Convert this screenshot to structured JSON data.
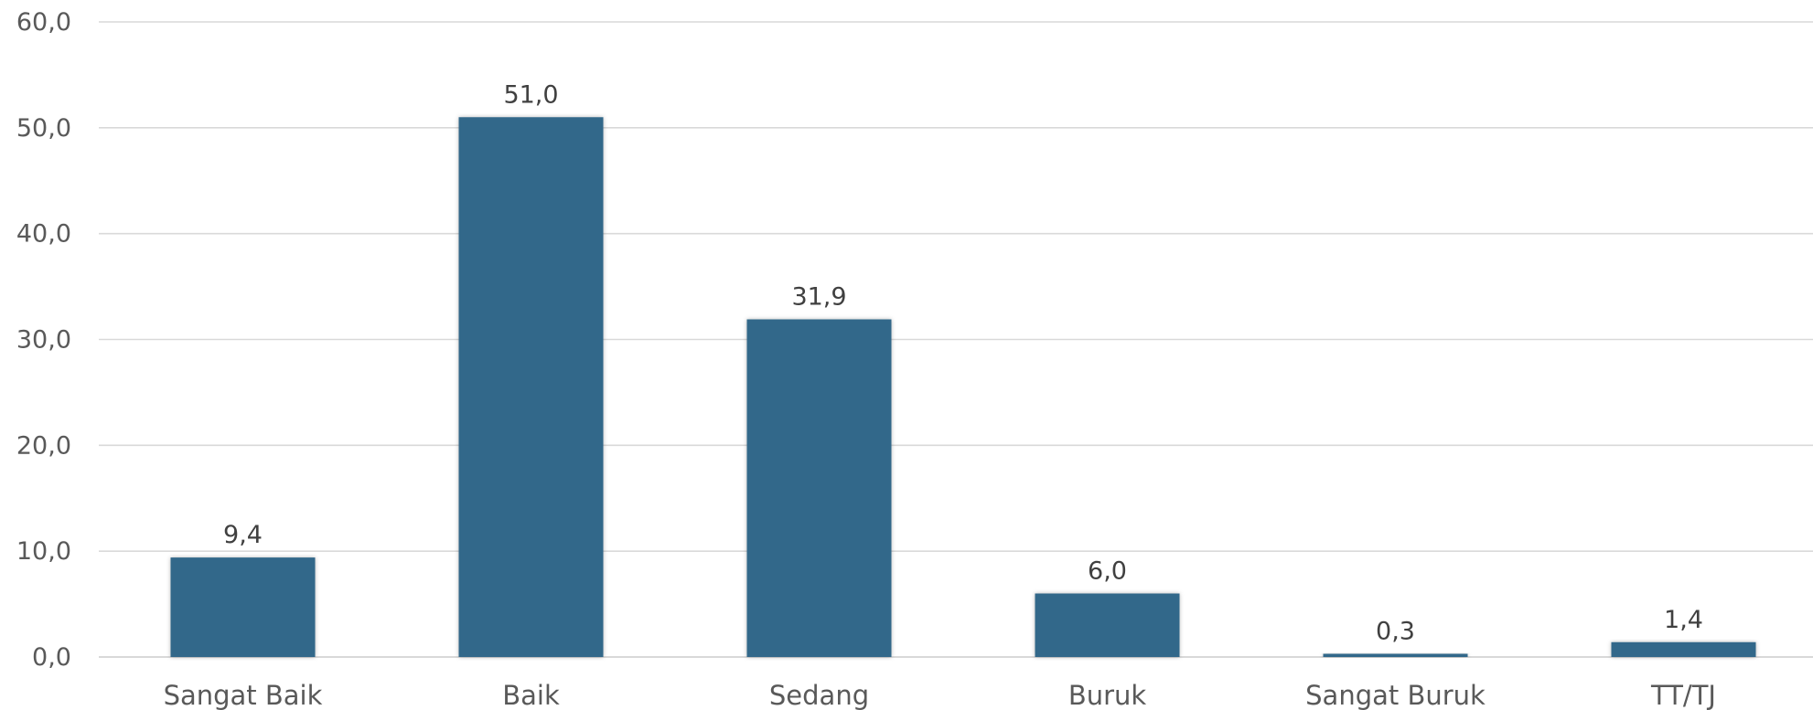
{
  "chart_data": {
    "type": "bar",
    "title": "",
    "xlabel": "",
    "ylabel": "",
    "categories": [
      "Sangat Baik",
      "Baik",
      "Sedang",
      "Buruk",
      "Sangat Buruk",
      "TT/TJ"
    ],
    "values": [
      9.4,
      51.0,
      31.9,
      6.0,
      0.3,
      1.4
    ],
    "value_labels": [
      "9,4",
      "51,0",
      "31,9",
      "6,0",
      "0,3",
      "1,4"
    ],
    "ylim": [
      0,
      60
    ],
    "yticks": [
      0,
      10,
      20,
      30,
      40,
      50,
      60
    ],
    "ytick_labels": [
      "0,0",
      "10,0",
      "20,0",
      "30,0",
      "40,0",
      "50,0",
      "60,0"
    ],
    "grid": true,
    "legend": false,
    "bar_color": "#31688a"
  }
}
